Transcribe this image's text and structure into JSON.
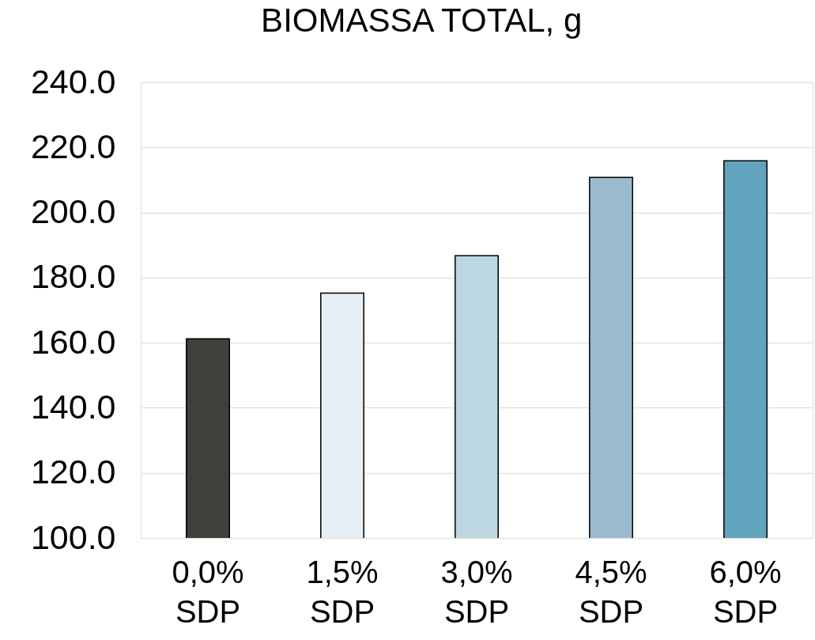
{
  "chart_data": {
    "type": "bar",
    "title": "BIOMASSA TOTAL, g",
    "categories": [
      "0,0% SDP",
      "1,5% SDP",
      "3,0% SDP",
      "4,5% SDP",
      "6,0% SDP"
    ],
    "values": [
      161.2,
      175.2,
      186.7,
      210.8,
      215.9
    ],
    "colors": [
      "#403f3c",
      "#e6eef6",
      "#bcd7e2",
      "#9abbcd",
      "#62a3be"
    ],
    "ylim": [
      100,
      240
    ],
    "yticks": [
      {
        "value": 100,
        "label": "100.0"
      },
      {
        "value": 120,
        "label": "120.0"
      },
      {
        "value": 140,
        "label": "140.0"
      },
      {
        "value": 160,
        "label": "160.0"
      },
      {
        "value": 180,
        "label": "180.0"
      },
      {
        "value": 200,
        "label": "200.0"
      },
      {
        "value": 220,
        "label": "220.0"
      },
      {
        "value": 240,
        "label": "240.0"
      }
    ],
    "grid": "y"
  }
}
